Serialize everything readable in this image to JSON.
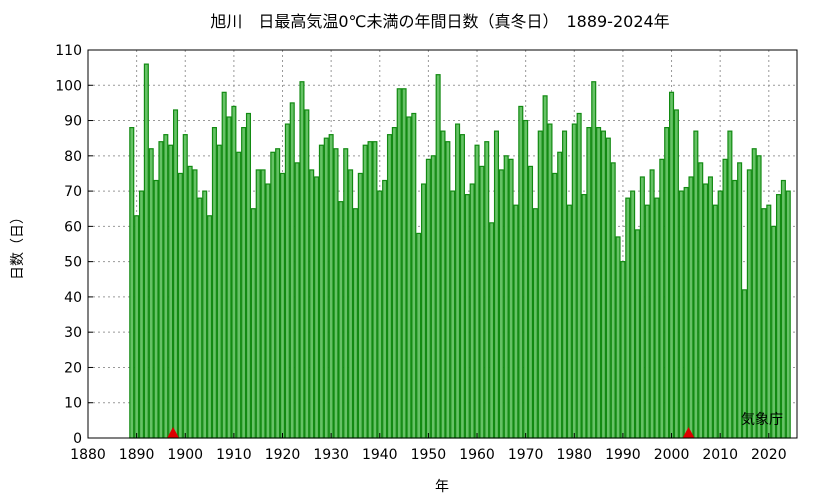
{
  "chart_data": {
    "type": "bar",
    "title": "旭川　日最高気温0℃未満の年間日数（真冬日）　1889-2024年",
    "xlabel": "年",
    "ylabel": "日数（日）",
    "source": "気象庁",
    "xlim": [
      1880,
      2025.8
    ],
    "ylim": [
      0,
      110
    ],
    "xticks": [
      1880,
      1890,
      1900,
      1910,
      1920,
      1930,
      1940,
      1950,
      1960,
      1970,
      1980,
      1990,
      2000,
      2010,
      2020
    ],
    "yticks": [
      0,
      10,
      20,
      30,
      40,
      50,
      60,
      70,
      80,
      90,
      100,
      110
    ],
    "grid": true,
    "start_year": 1889,
    "values": [
      88,
      63,
      70,
      106,
      82,
      73,
      84,
      86,
      83,
      93,
      75,
      86,
      77,
      76,
      68,
      70,
      63,
      88,
      83,
      98,
      91,
      94,
      81,
      88,
      92,
      65,
      76,
      76,
      72,
      81,
      82,
      75,
      89,
      95,
      78,
      101,
      93,
      76,
      74,
      83,
      85,
      86,
      82,
      67,
      82,
      76,
      65,
      75,
      83,
      84,
      84,
      70,
      73,
      86,
      88,
      99,
      99,
      91,
      92,
      58,
      72,
      79,
      80,
      103,
      87,
      84,
      70,
      89,
      86,
      69,
      72,
      83,
      77,
      84,
      61,
      87,
      76,
      80,
      79,
      66,
      94,
      90,
      77,
      65,
      87,
      97,
      89,
      75,
      81,
      87,
      66,
      89,
      92,
      69,
      88,
      101,
      88,
      87,
      85,
      78,
      57,
      50,
      68,
      70,
      59,
      74,
      66,
      76,
      68,
      79,
      88,
      98,
      93,
      70,
      71,
      74,
      87,
      78,
      72,
      74,
      66,
      70,
      79,
      87,
      73,
      78,
      42,
      76,
      82,
      80,
      65,
      66,
      60,
      69,
      73,
      70
    ],
    "markers": [
      1897.5,
      2003.5
    ],
    "colors": {
      "bar_fill": "#66c266",
      "bar_edge": "#128a12",
      "marker": "#dd0000"
    }
  }
}
